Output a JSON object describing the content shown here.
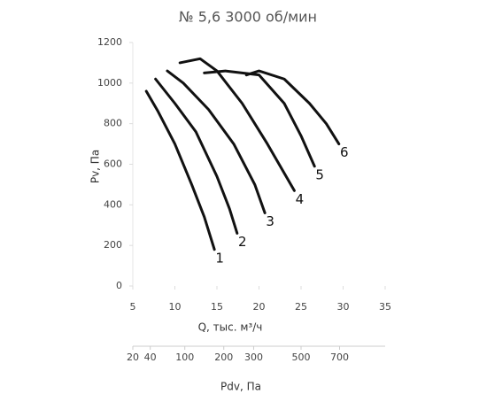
{
  "chart_data": {
    "type": "line",
    "title": "№ 5,6 3000 об/мин",
    "x_label": "Q, тыс. м³/ч",
    "y_label": "Pv, Па",
    "x2_label": "Pdv, Па",
    "xlim": [
      5,
      35
    ],
    "xticks": [
      5,
      10,
      15,
      20,
      25,
      30,
      35
    ],
    "ylim": [
      0,
      1200
    ],
    "yticks": [
      0,
      200,
      400,
      600,
      800,
      1000,
      1200
    ],
    "x2lim": [
      20,
      980
    ],
    "x2scale": "sqrt",
    "x2ticks": [
      20,
      40,
      100,
      200,
      300,
      500,
      700
    ],
    "series": [
      {
        "name": "1",
        "color": "#111111",
        "x": [
          6.6,
          8,
          10,
          12,
          13.5,
          14.7
        ],
        "values": [
          960,
          860,
          700,
          500,
          340,
          180
        ]
      },
      {
        "name": "2",
        "color": "#111111",
        "x": [
          7.7,
          10,
          12.5,
          15,
          16.5,
          17.4
        ],
        "values": [
          1020,
          900,
          760,
          540,
          380,
          260
        ]
      },
      {
        "name": "3",
        "color": "#111111",
        "x": [
          9.1,
          11,
          14,
          17,
          19.5,
          20.7
        ],
        "values": [
          1060,
          1000,
          870,
          700,
          500,
          360
        ]
      },
      {
        "name": "4",
        "color": "#111111",
        "x": [
          10.6,
          13,
          15,
          18,
          21,
          24.2
        ],
        "values": [
          1100,
          1120,
          1060,
          900,
          700,
          470
        ]
      },
      {
        "name": "5",
        "color": "#111111",
        "x": [
          13.5,
          16,
          20,
          23,
          25,
          26.6
        ],
        "values": [
          1050,
          1060,
          1040,
          900,
          740,
          590
        ]
      },
      {
        "name": "6",
        "color": "#111111",
        "x": [
          18.5,
          20,
          23,
          26,
          28,
          29.5
        ],
        "values": [
          1040,
          1060,
          1020,
          900,
          800,
          700
        ]
      }
    ]
  }
}
